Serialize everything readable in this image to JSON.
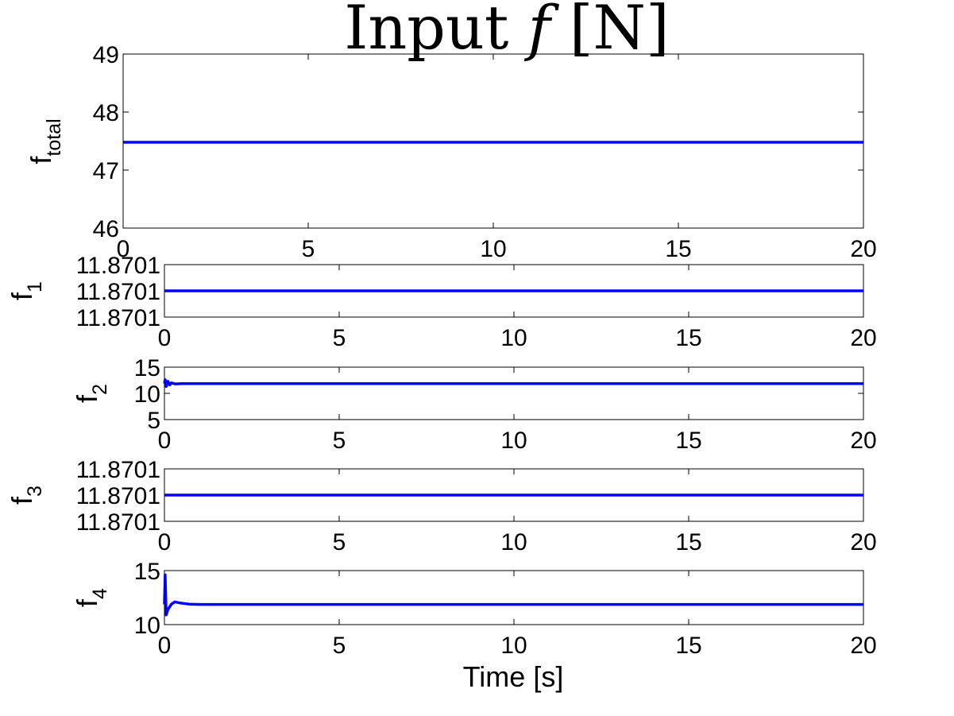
{
  "figure": {
    "title_main": "Input ",
    "title_var": "f",
    "title_unit": " [N]",
    "xlabel": "Time [s]"
  },
  "chart_data": [
    {
      "type": "line",
      "ylabel_base": "f",
      "ylabel_sub": "total",
      "xlim": [
        0,
        20
      ],
      "ylim": [
        46,
        49
      ],
      "x_ticks": [
        0,
        5,
        10,
        15,
        20
      ],
      "y_ticks": [
        46,
        47,
        48,
        49
      ],
      "y_tick_labels": [
        "46",
        "47",
        "48",
        "49"
      ],
      "series": [
        {
          "x": [
            0,
            20
          ],
          "y": [
            47.48,
            47.48
          ]
        }
      ]
    },
    {
      "type": "line",
      "ylabel_base": "f",
      "ylabel_sub": "1",
      "xlim": [
        0,
        20
      ],
      "ylim": [
        0,
        2
      ],
      "x_ticks": [
        0,
        5,
        10,
        15,
        20
      ],
      "y_ticks": [
        0,
        1,
        2
      ],
      "y_tick_labels": [
        "11.8701",
        "11.8701",
        "11.8701"
      ],
      "series": [
        {
          "x": [
            0,
            20
          ],
          "y": [
            1,
            1
          ]
        }
      ]
    },
    {
      "type": "line",
      "ylabel_base": "f",
      "ylabel_sub": "2",
      "xlim": [
        0,
        20
      ],
      "ylim": [
        5,
        15
      ],
      "x_ticks": [
        0,
        5,
        10,
        15,
        20
      ],
      "y_ticks": [
        5,
        10,
        15
      ],
      "y_tick_labels": [
        "5",
        "10",
        "15"
      ],
      "series": [
        {
          "x": [
            0,
            0.02,
            0.05,
            0.1,
            0.15,
            0.2,
            0.3,
            0.5,
            20
          ],
          "y": [
            11.87,
            12.6,
            11.3,
            12.3,
            11.6,
            12.0,
            11.8,
            11.87,
            11.87
          ]
        }
      ]
    },
    {
      "type": "line",
      "ylabel_base": "f",
      "ylabel_sub": "3",
      "xlim": [
        0,
        20
      ],
      "ylim": [
        0,
        2
      ],
      "x_ticks": [
        0,
        5,
        10,
        15,
        20
      ],
      "y_ticks": [
        0,
        1,
        2
      ],
      "y_tick_labels": [
        "11.8701",
        "11.8701",
        "11.8701"
      ],
      "series": [
        {
          "x": [
            0,
            20
          ],
          "y": [
            1,
            1
          ]
        }
      ]
    },
    {
      "type": "line",
      "ylabel_base": "f",
      "ylabel_sub": "4",
      "xlim": [
        0,
        20
      ],
      "ylim": [
        10,
        15
      ],
      "x_ticks": [
        0,
        5,
        10,
        15,
        20
      ],
      "y_ticks": [
        10,
        15
      ],
      "y_tick_labels": [
        "10",
        "15"
      ],
      "series": [
        {
          "x": [
            0,
            0.02,
            0.05,
            0.1,
            0.2,
            0.3,
            0.45,
            0.7,
            1.0,
            20
          ],
          "y": [
            11.87,
            14.6,
            10.9,
            11.4,
            11.9,
            12.1,
            12.0,
            11.9,
            11.87,
            11.87
          ]
        }
      ]
    }
  ]
}
